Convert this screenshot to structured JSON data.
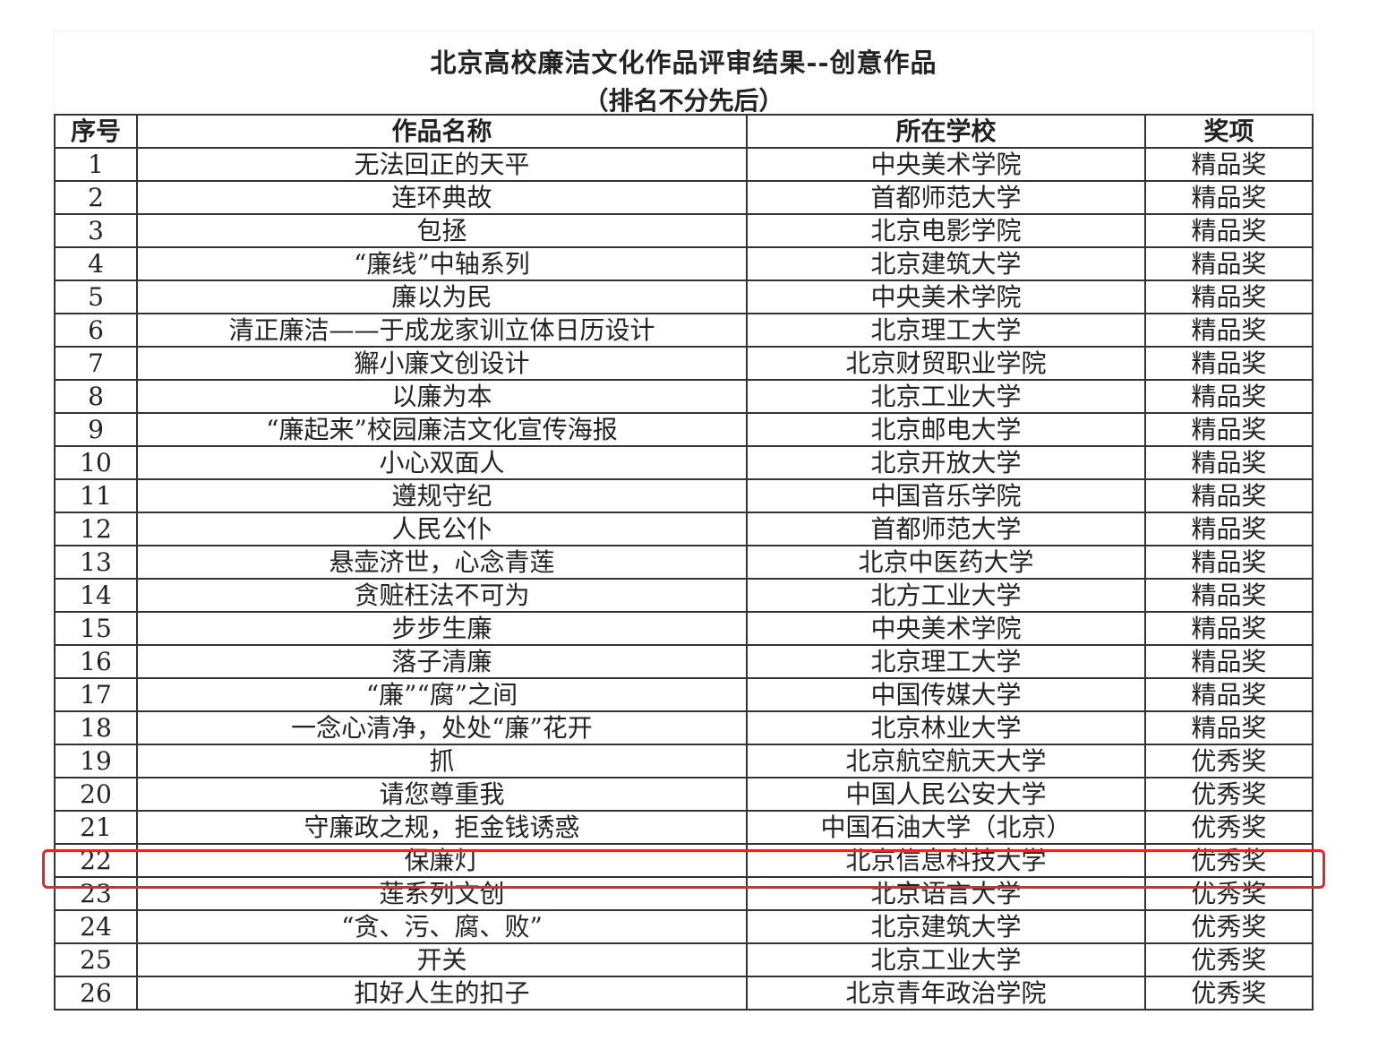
{
  "title": "北京高校廉洁文化作品评审结果--创意作品",
  "subtitle": "（排名不分先后）",
  "columns": [
    "序号",
    "作品名称",
    "所在学校",
    "奖项"
  ],
  "rows": [
    [
      "1",
      "无法回正的天平",
      "中央美术学院",
      "精品奖"
    ],
    [
      "2",
      "连环典故",
      "首都师范大学",
      "精品奖"
    ],
    [
      "3",
      "包拯",
      "北京电影学院",
      "精品奖"
    ],
    [
      "4",
      "“廉线”中轴系列",
      "北京建筑大学",
      "精品奖"
    ],
    [
      "5",
      "廉以为民",
      "中央美术学院",
      "精品奖"
    ],
    [
      "6",
      "清正廉洁——于成龙家训立体日历设计",
      "北京理工大学",
      "精品奖"
    ],
    [
      "7",
      "獬小廉文创设计",
      "北京财贸职业学院",
      "精品奖"
    ],
    [
      "8",
      "以廉为本",
      "北京工业大学",
      "精品奖"
    ],
    [
      "9",
      "“廉起来”校园廉洁文化宣传海报",
      "北京邮电大学",
      "精品奖"
    ],
    [
      "10",
      "小心双面人",
      "北京开放大学",
      "精品奖"
    ],
    [
      "11",
      "遵规守纪",
      "中国音乐学院",
      "精品奖"
    ],
    [
      "12",
      "人民公仆",
      "首都师范大学",
      "精品奖"
    ],
    [
      "13",
      "悬壶济世，心念青莲",
      "北京中医药大学",
      "精品奖"
    ],
    [
      "14",
      "贪赃枉法不可为",
      "北方工业大学",
      "精品奖"
    ],
    [
      "15",
      "步步生廉",
      "中央美术学院",
      "精品奖"
    ],
    [
      "16",
      "落子清廉",
      "北京理工大学",
      "精品奖"
    ],
    [
      "17",
      "“廉”“腐”之间",
      "中国传媒大学",
      "精品奖"
    ],
    [
      "18",
      "一念心清净，处处“廉”花开",
      "北京林业大学",
      "精品奖"
    ],
    [
      "19",
      "抓",
      "北京航空航天大学",
      "优秀奖"
    ],
    [
      "20",
      "请您尊重我",
      "中国人民公安大学",
      "优秀奖"
    ],
    [
      "21",
      "守廉政之规，拒金钱诱惑",
      "中国石油大学（北京）",
      "优秀奖"
    ],
    [
      "22",
      "保廉灯",
      "北京信息科技大学",
      "优秀奖"
    ],
    [
      "23",
      "莲系列文创",
      "北京语言大学",
      "优秀奖"
    ],
    [
      "24",
      "“贪、污、腐、败”",
      "北京建筑大学",
      "优秀奖"
    ],
    [
      "25",
      "开关",
      "北京工业大学",
      "优秀奖"
    ],
    [
      "26",
      "扣好人生的扣子",
      "北京青年政治学院",
      "优秀奖"
    ]
  ],
  "highlight_row": "21",
  "highlight_color": "#e8262a"
}
